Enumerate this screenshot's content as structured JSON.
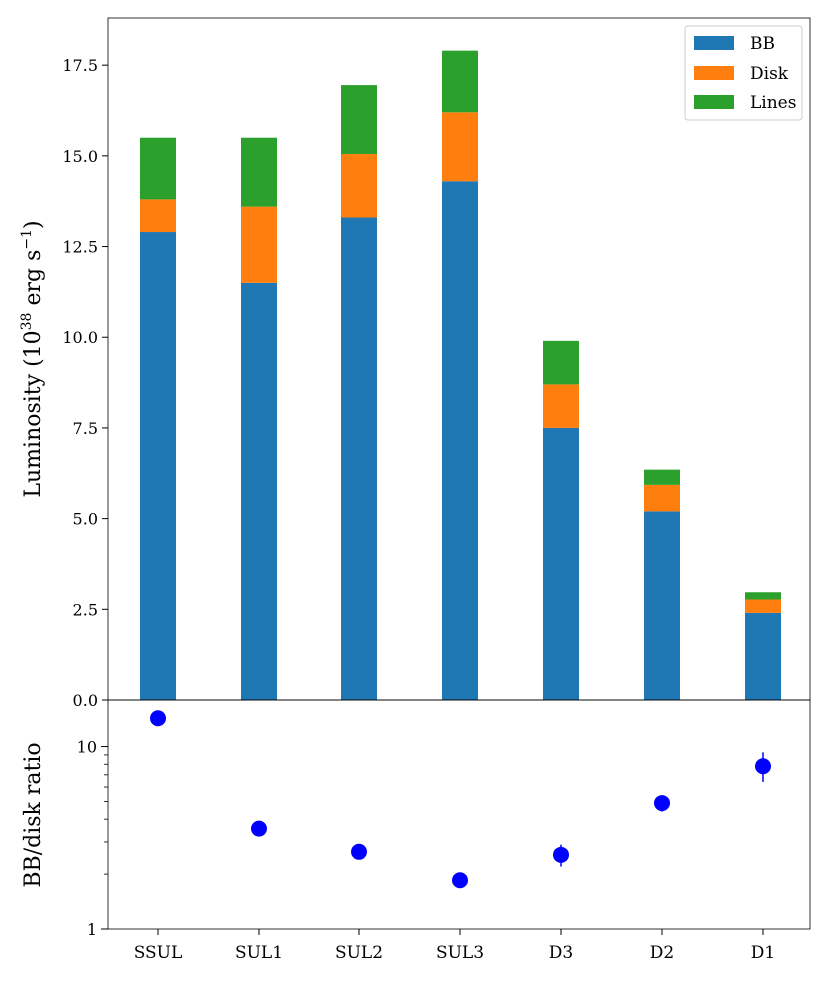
{
  "chart_data": [
    {
      "type": "bar",
      "stacked": true,
      "categories": [
        "SSUL",
        "SUL1",
        "SUL2",
        "SUL3",
        "D3",
        "D2",
        "D1"
      ],
      "series": [
        {
          "name": "BB",
          "color": "#1f77b4",
          "values": [
            12.9,
            11.5,
            13.3,
            14.3,
            7.5,
            5.2,
            2.4
          ]
        },
        {
          "name": "Disk",
          "color": "#ff7f0e",
          "values": [
            0.9,
            2.1,
            1.75,
            1.9,
            1.2,
            0.73,
            0.37
          ]
        },
        {
          "name": "Lines",
          "color": "#2ca02c",
          "values": [
            1.7,
            1.9,
            1.9,
            1.7,
            1.2,
            0.42,
            0.2
          ]
        }
      ],
      "ylabel_prefix": "Luminosity (10",
      "ylabel_exp": "38",
      "ylabel_mid": " erg s",
      "ylabel_exp2": "−1",
      "ylabel_suffix": ")",
      "ylim": [
        0,
        18.8
      ],
      "yticks": [
        0.0,
        2.5,
        5.0,
        7.5,
        10.0,
        12.5,
        15.0,
        17.5
      ],
      "ytick_labels": [
        "0.0",
        "2.5",
        "5.0",
        "7.5",
        "10.0",
        "12.5",
        "15.0",
        "17.5"
      ],
      "legend_position": "top-right",
      "grid": false
    },
    {
      "type": "scatter",
      "categories": [
        "SSUL",
        "SUL1",
        "SUL2",
        "SUL3",
        "D3",
        "D2",
        "D1"
      ],
      "values": [
        14.3,
        3.55,
        2.65,
        1.85,
        2.55,
        4.9,
        7.8
      ],
      "errors_low": [
        0.5,
        0.3,
        0.2,
        0.15,
        0.35,
        0.5,
        1.4
      ],
      "errors_high": [
        0.5,
        0.3,
        0.2,
        0.15,
        0.35,
        0.5,
        1.5
      ],
      "color": "#0000ff",
      "ylabel": "BB/disk ratio",
      "yscale": "log",
      "ylim": [
        1,
        18
      ],
      "yticks": [
        1,
        10
      ],
      "ytick_labels": [
        "1",
        "10"
      ],
      "xtick_labels": [
        "SSUL",
        "SUL1",
        "SUL2",
        "SUL3",
        "D3",
        "D2",
        "D1"
      ],
      "grid": false
    }
  ]
}
